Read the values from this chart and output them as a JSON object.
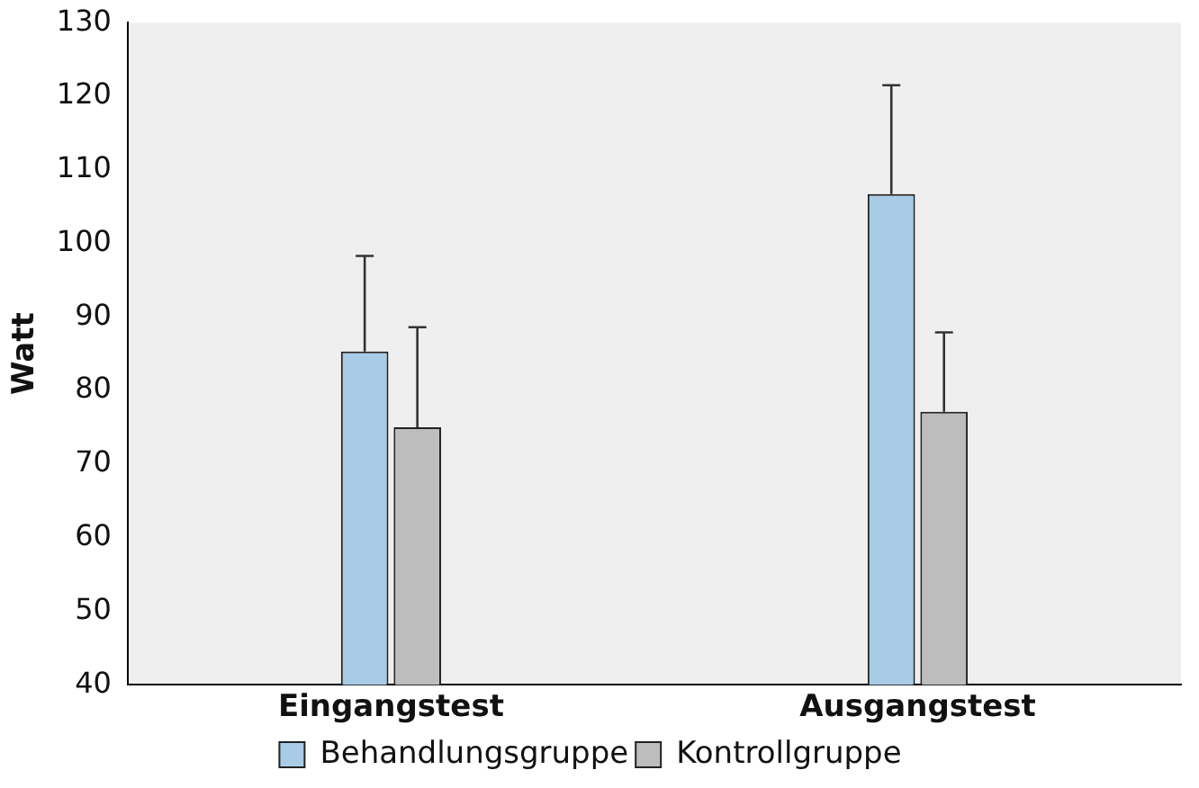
{
  "chart_data": {
    "type": "bar",
    "ylabel": "Watt",
    "categories": [
      "Eingangstest",
      "Ausgangstest"
    ],
    "series": [
      {
        "name": "Behandlungsgruppe",
        "color": "#a8cce6",
        "values": [
          85.3,
          106.7
        ],
        "errors": [
          [
            85.3,
            98.3
          ],
          [
            106.7,
            121.5
          ]
        ]
      },
      {
        "name": "Kontrollgruppe",
        "color": "#bdbdbd",
        "values": [
          75,
          77.1
        ],
        "errors": [
          [
            75,
            88.6
          ],
          [
            77.1,
            87.9
          ]
        ]
      }
    ],
    "ylim": [
      40,
      130
    ],
    "yticks": [
      40,
      50,
      60,
      70,
      80,
      90,
      100,
      110,
      120,
      130
    ],
    "grid": false,
    "legend": "bottom"
  }
}
